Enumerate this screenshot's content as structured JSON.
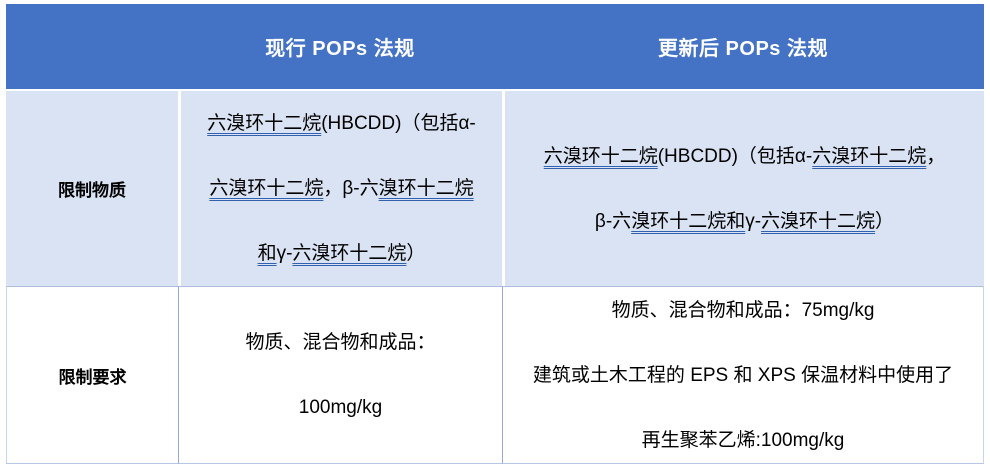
{
  "table": {
    "header": {
      "blank_label": "",
      "current_label": "现行 POPs 法规",
      "updated_label": "更新后 POPs 法规"
    },
    "rows": [
      {
        "label": "限制物质",
        "current_lines": [
          [
            {
              "text": "六溴环十二烷",
              "underline": true
            },
            {
              "text": "(HBCDD)（包括α-",
              "underline": false
            }
          ],
          [
            {
              "text": "六溴环十二烷",
              "underline": true
            },
            {
              "text": "，β-六",
              "underline": false
            },
            {
              "text": "溴环十二烷",
              "underline": true
            }
          ],
          [
            {
              "text": "和",
              "underline": true
            },
            {
              "text": "γ-",
              "underline": false
            },
            {
              "text": "六溴环十二烷",
              "underline": true
            },
            {
              "text": "）",
              "underline": false
            }
          ]
        ],
        "updated_lines": [
          [
            {
              "text": "六溴环十二烷",
              "underline": true
            },
            {
              "text": "(HBCDD)（包括α-",
              "underline": false
            },
            {
              "text": "六溴环十二烷",
              "underline": true
            },
            {
              "text": "，",
              "underline": false
            }
          ],
          [
            {
              "text": "β-六",
              "underline": false
            },
            {
              "text": "溴环十二烷和",
              "underline": true
            },
            {
              "text": "γ-",
              "underline": false
            },
            {
              "text": "六溴环十二烷",
              "underline": true
            },
            {
              "text": "）",
              "underline": false
            }
          ]
        ]
      },
      {
        "label": "限制要求",
        "current_lines": [
          [
            {
              "text": "物质、混合物和成品：",
              "underline": false
            }
          ],
          [
            {
              "text": "100mg/kg",
              "underline": false
            }
          ]
        ],
        "updated_lines": [
          [
            {
              "text": "物质、混合物和成品：75mg/kg",
              "underline": false
            }
          ],
          [
            {
              "text": "建筑或土木工程的 EPS 和 XPS 保温材料中使用了",
              "underline": false
            }
          ],
          [
            {
              "text": "再生聚苯乙烯:100mg/kg",
              "underline": false
            }
          ]
        ]
      }
    ],
    "colors": {
      "header_bg": "#4472C4",
      "header_text": "#FFFFFF",
      "row_highlight_bg": "#DAE3F3",
      "underline_color": "#3060AE",
      "body_text": "#000000"
    }
  }
}
